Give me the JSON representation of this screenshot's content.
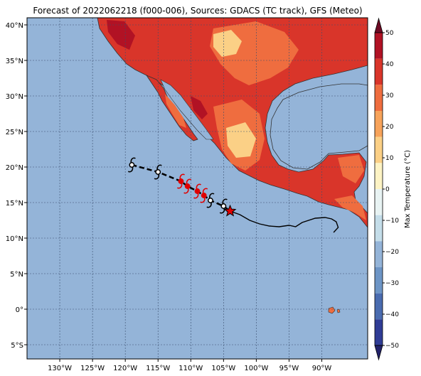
{
  "title": "Forecast of 2022062218 (f000-006), Sources: GDACS (TC track), GFS (Meteo)",
  "map": {
    "ocean_color": "#94b4d8",
    "lon_range": [
      -135,
      -83
    ],
    "lat_range": [
      -7,
      41
    ],
    "lon_ticks": [
      "130°W",
      "125°W",
      "120°W",
      "115°W",
      "110°W",
      "105°W",
      "100°W",
      "95°W",
      "90°W"
    ],
    "lat_ticks": [
      "40°N",
      "35°N",
      "30°N",
      "25°N",
      "20°N",
      "15°N",
      "10°N",
      "5°N",
      "0°",
      "5°S"
    ]
  },
  "colorbar": {
    "label": "Max Temperature (°C)",
    "ticks": [
      "50",
      "40",
      "30",
      "20",
      "10",
      "0",
      "−10",
      "−20",
      "−30",
      "−40",
      "−50"
    ],
    "colors": [
      "#23236b",
      "#303d96",
      "#4a6cb0",
      "#6d95c6",
      "#94b4d8",
      "#c4dde9",
      "#e8f3f3",
      "#fdf3c4",
      "#fbd086",
      "#f7a35a",
      "#ef6d3f",
      "#d9352a",
      "#b11224",
      "#6e0a24"
    ]
  },
  "track": {
    "past_points": [
      {
        "lon": -119.0,
        "lat": 20.3
      },
      {
        "lon": -115.0,
        "lat": 19.3
      },
      {
        "lon": -111.5,
        "lat": 18.0
      },
      {
        "lon": -110.5,
        "lat": 17.3
      },
      {
        "lon": -109.0,
        "lat": 16.6
      },
      {
        "lon": -108.0,
        "lat": 16.0
      },
      {
        "lon": -107.0,
        "lat": 15.3
      },
      {
        "lon": -105.0,
        "lat": 14.5
      }
    ],
    "current_position": {
      "lon": -104.0,
      "lat": 13.8
    },
    "path_line": [
      {
        "lon": -104.0,
        "lat": 13.8
      },
      {
        "lon": -102.5,
        "lat": 13.3
      },
      {
        "lon": -101.0,
        "lat": 12.5
      },
      {
        "lon": -99.5,
        "lat": 12.0
      },
      {
        "lon": -98.0,
        "lat": 11.7
      },
      {
        "lon": -96.5,
        "lat": 11.6
      },
      {
        "lon": -95.0,
        "lat": 11.8
      },
      {
        "lon": -94.0,
        "lat": 11.6
      },
      {
        "lon": -93.0,
        "lat": 12.2
      },
      {
        "lon": -91.0,
        "lat": 12.8
      },
      {
        "lon": -89.5,
        "lat": 12.9
      },
      {
        "lon": -88.5,
        "lat": 12.7
      },
      {
        "lon": -87.8,
        "lat": 12.3
      },
      {
        "lon": -87.5,
        "lat": 11.5
      },
      {
        "lon": -88.2,
        "lat": 10.8
      }
    ]
  }
}
